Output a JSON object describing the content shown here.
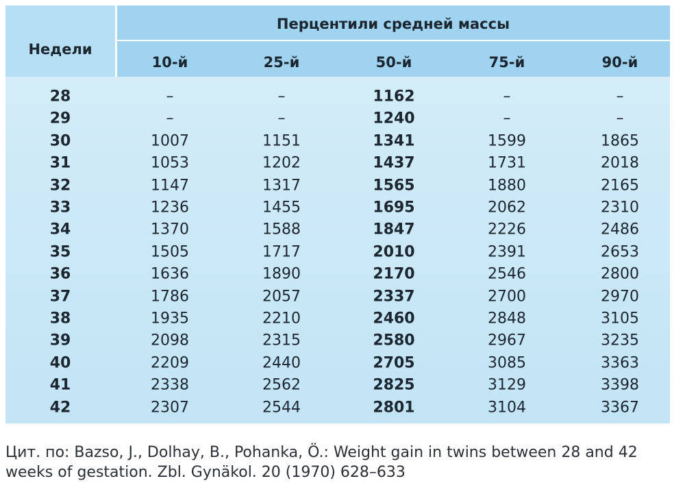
{
  "table": {
    "header": {
      "weeks": "Недели",
      "group": "Перцентили средней массы",
      "columns": [
        "10-й",
        "25-й",
        "50-й",
        "75-й",
        "90-й"
      ]
    },
    "rows": [
      [
        "28",
        "–",
        "–",
        "1162",
        "–",
        "–"
      ],
      [
        "29",
        "–",
        "–",
        "1240",
        "–",
        "–"
      ],
      [
        "30",
        "1007",
        "1151",
        "1341",
        "1599",
        "1865"
      ],
      [
        "31",
        "1053",
        "1202",
        "1437",
        "1731",
        "2018"
      ],
      [
        "32",
        "1147",
        "1317",
        "1565",
        "1880",
        "2165"
      ],
      [
        "33",
        "1236",
        "1455",
        "1695",
        "2062",
        "2310"
      ],
      [
        "34",
        "1370",
        "1588",
        "1847",
        "2226",
        "2486"
      ],
      [
        "35",
        "1505",
        "1717",
        "2010",
        "2391",
        "2653"
      ],
      [
        "36",
        "1636",
        "1890",
        "2170",
        "2546",
        "2800"
      ],
      [
        "37",
        "1786",
        "2057",
        "2337",
        "2700",
        "2970"
      ],
      [
        "38",
        "1935",
        "2210",
        "2460",
        "2848",
        "3105"
      ],
      [
        "39",
        "2098",
        "2315",
        "2580",
        "2967",
        "3235"
      ],
      [
        "40",
        "2209",
        "2440",
        "2705",
        "3085",
        "3363"
      ],
      [
        "41",
        "2338",
        "2562",
        "2825",
        "3129",
        "3398"
      ],
      [
        "42",
        "2307",
        "2544",
        "2801",
        "3104",
        "3367"
      ]
    ]
  },
  "caption": [
    "Цит. по: Bazso, J., Dolhay, B., Pohanka, Ö.: Weight gain in twins between 28 and 42",
    "weeks of gestation. Zbl. Gynäkol. 20 (1970) 628–633"
  ]
}
